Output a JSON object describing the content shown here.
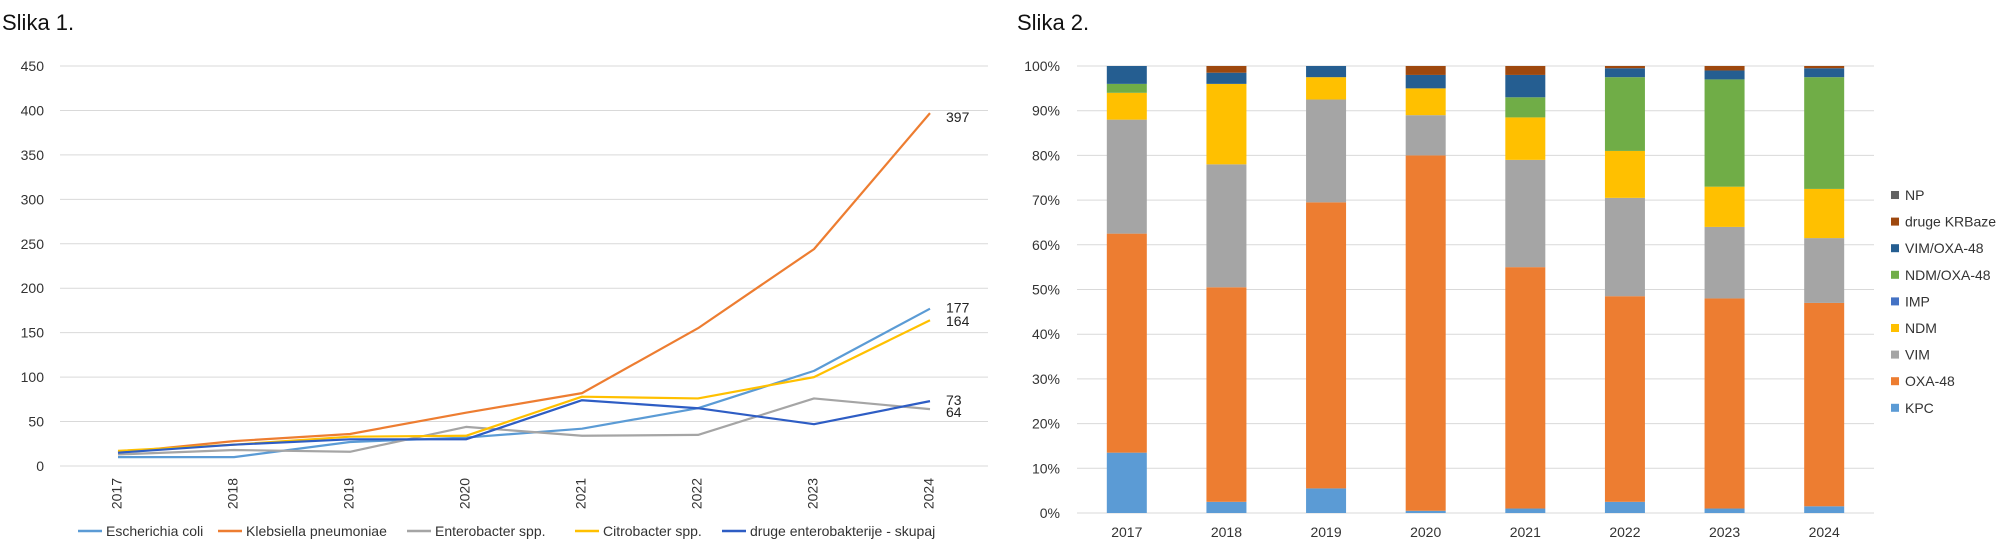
{
  "chart_data": [
    {
      "type": "line",
      "title": "Slika 1.",
      "categories": [
        "2017",
        "2018",
        "2019",
        "2020",
        "2021",
        "2022",
        "2023",
        "2024"
      ],
      "ylim": [
        0,
        450
      ],
      "yticks": [
        0,
        50,
        100,
        150,
        200,
        250,
        300,
        350,
        400,
        450
      ],
      "grid": true,
      "legend_position": "bottom",
      "series": [
        {
          "name": "Escherichia coli",
          "color": "#5B9BD5",
          "values": [
            10,
            10,
            27,
            32,
            42,
            65,
            107,
            177
          ],
          "end_label": "177"
        },
        {
          "name": "Klebsiella pneumoniae",
          "color": "#ED7D31",
          "values": [
            15,
            28,
            36,
            60,
            82,
            155,
            244,
            397
          ],
          "end_label": "397"
        },
        {
          "name": "Enterobacter spp.",
          "color": "#A5A5A5",
          "values": [
            13,
            18,
            16,
            44,
            34,
            35,
            76,
            64
          ],
          "end_label": "64"
        },
        {
          "name": "Citrobacter spp.",
          "color": "#FFC000",
          "values": [
            17,
            24,
            33,
            34,
            78,
            76,
            100,
            164
          ],
          "end_label": "164"
        },
        {
          "name": "druge enterobakterije - skupaj",
          "color": "#2E5DC4",
          "values": [
            15,
            24,
            30,
            30,
            74,
            65,
            47,
            73
          ],
          "end_label": "73"
        }
      ]
    },
    {
      "type": "bar",
      "stacked": true,
      "normalized": true,
      "title": "Slika 2.",
      "categories": [
        "2017",
        "2018",
        "2019",
        "2020",
        "2021",
        "2022",
        "2023",
        "2024"
      ],
      "ylim": [
        0,
        100
      ],
      "yticks": [
        "0%",
        "10%",
        "20%",
        "30%",
        "40%",
        "50%",
        "60%",
        "70%",
        "80%",
        "90%",
        "100%"
      ],
      "grid": true,
      "legend_position": "right",
      "series": [
        {
          "name": "KPC",
          "color": "#5B9BD5",
          "values": [
            13.5,
            2.5,
            5.5,
            0.5,
            1,
            2.5,
            1,
            1.5
          ]
        },
        {
          "name": "OXA-48",
          "color": "#ED7D31",
          "values": [
            49,
            48,
            64,
            79.5,
            54,
            46,
            47,
            45.5
          ]
        },
        {
          "name": "VIM",
          "color": "#A5A5A5",
          "values": [
            25.5,
            27.5,
            23,
            9,
            24,
            22,
            16,
            14.5
          ]
        },
        {
          "name": "NDM",
          "color": "#FFC000",
          "values": [
            6,
            18,
            5,
            6,
            9.5,
            10.5,
            9,
            11
          ]
        },
        {
          "name": "IMP",
          "color": "#4472C4",
          "values": [
            0,
            0,
            0,
            0,
            0,
            0,
            0,
            0
          ]
        },
        {
          "name": "NDM/OXA-48",
          "color": "#70AD47",
          "values": [
            2,
            0,
            0,
            0,
            4.5,
            16.5,
            24,
            25
          ]
        },
        {
          "name": "VIM/OXA-48",
          "color": "#255E91",
          "values": [
            4,
            2.5,
            2.5,
            3,
            5,
            2,
            2,
            2
          ]
        },
        {
          "name": "druge KRBaze",
          "color": "#9E480E",
          "values": [
            0,
            1.5,
            0,
            2,
            2,
            0.5,
            1,
            0.5
          ]
        },
        {
          "name": "NP",
          "color": "#636363",
          "values": [
            0,
            0,
            0,
            0,
            0,
            0,
            0,
            0
          ]
        }
      ]
    }
  ]
}
